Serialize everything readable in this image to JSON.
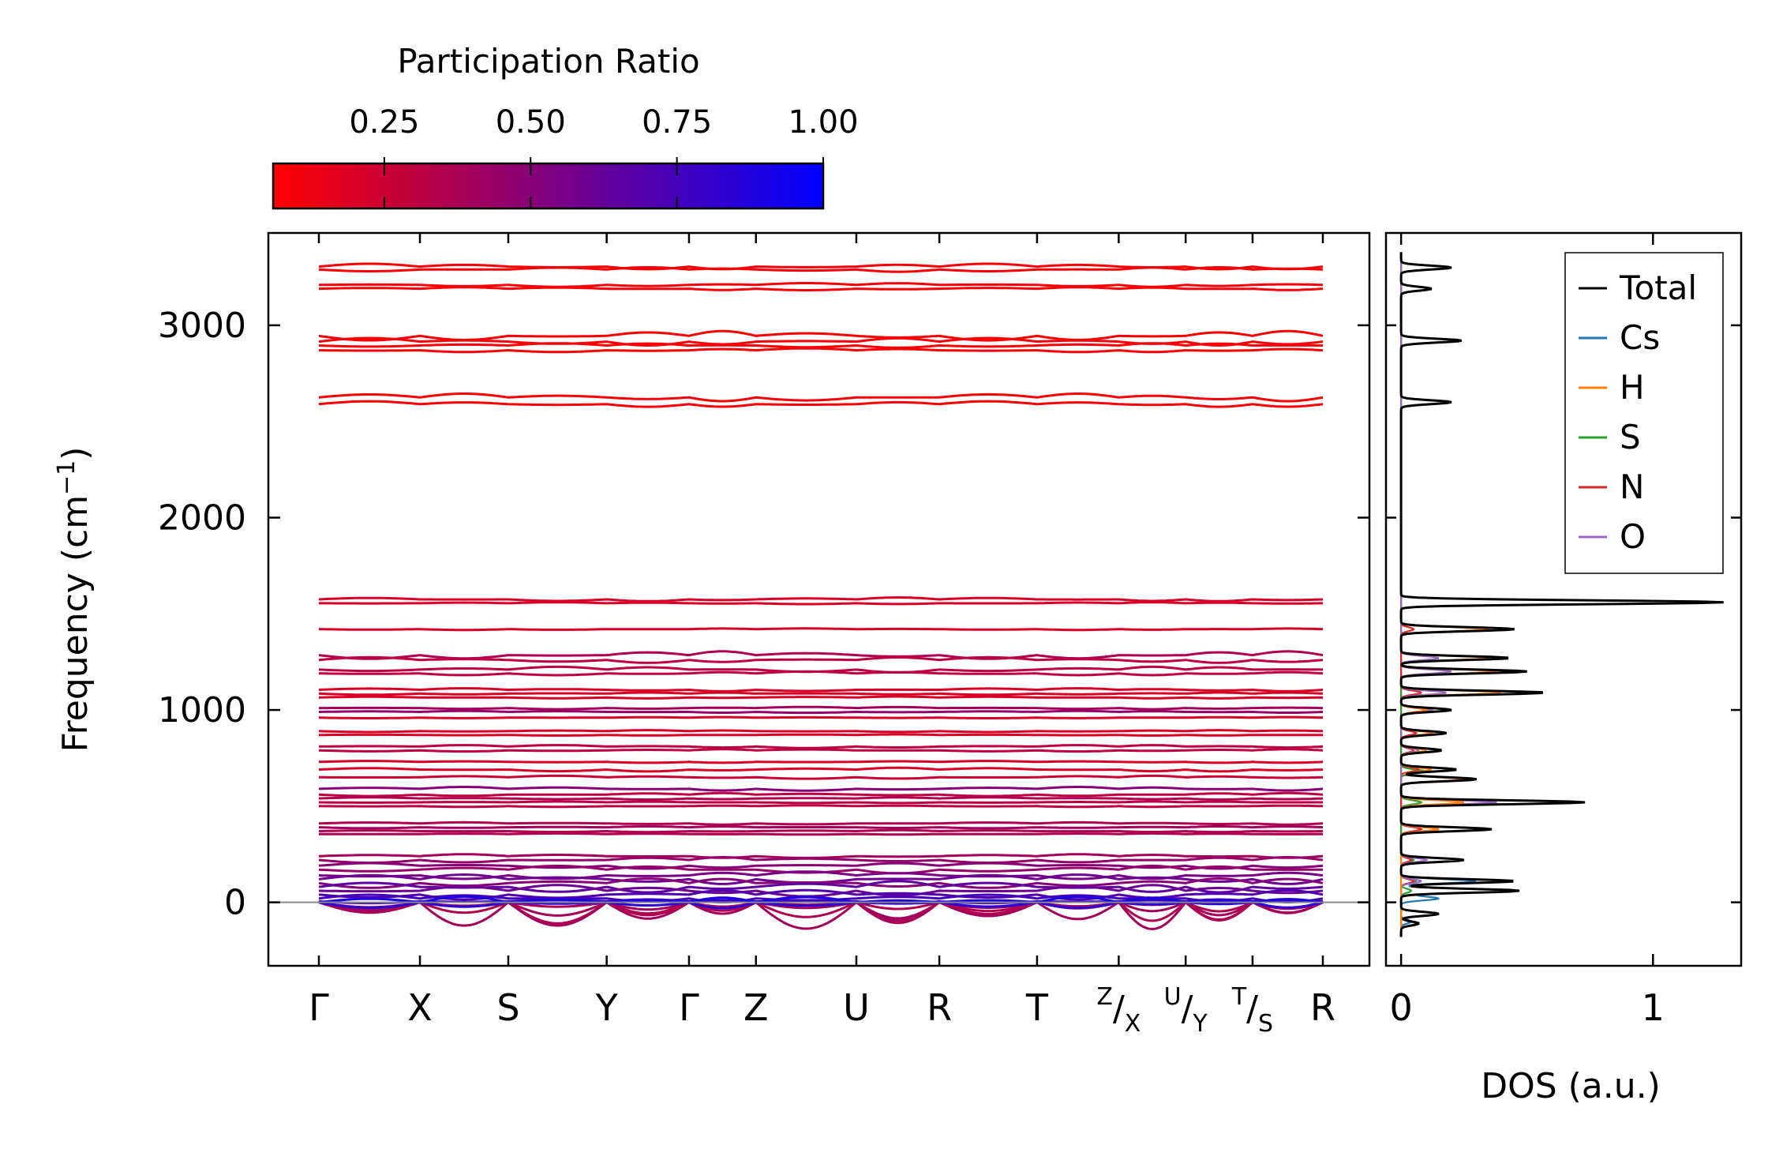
{
  "chart_data": [
    {
      "type": "line",
      "subtype": "phonon-band-structure",
      "ylabel_main": "Frequency (cm",
      "ylabel_sup": "−1",
      "ylabel_close": ")",
      "ylim": [
        -330,
        3480
      ],
      "yticks": [
        0,
        1000,
        2000,
        3000
      ],
      "ytick_labels": [
        "0",
        "1000",
        "2000",
        "3000"
      ],
      "kpoint_positions": [
        0,
        0.151,
        0.283,
        0.43,
        0.553,
        0.653,
        0.803,
        0.927,
        1.073,
        1.195,
        1.295,
        1.395,
        1.5
      ],
      "kpoint_labels": [
        "Γ",
        "X",
        "S",
        "Y",
        "Γ",
        "Z",
        "U",
        "R",
        "T",
        "ZX",
        "UY",
        "TS",
        "R"
      ],
      "kpoint_labels_top": [
        "",
        "",
        "",
        "",
        "",
        "",
        "",
        "",
        "",
        "Z",
        "U",
        "T",
        ""
      ],
      "kpoint_labels_bottom": [
        "",
        "",
        "",
        "",
        "",
        "",
        "",
        "",
        "",
        "X",
        "Y",
        "S",
        ""
      ],
      "colorbar": {
        "label": "Participation Ratio",
        "range": [
          0.06,
          1.0
        ],
        "ticks": [
          0.25,
          0.5,
          0.75,
          1.0
        ],
        "tick_labels": [
          "0.25",
          "0.50",
          "0.75",
          "1.00"
        ],
        "color_low": "#ff0000",
        "color_high": "#0000ff"
      },
      "bands": [
        {
          "f": 3305,
          "amp": 15,
          "pr": 0.08
        },
        {
          "f": 3290,
          "amp": -12,
          "pr": 0.08
        },
        {
          "f": 3210,
          "amp": 10,
          "pr": 0.08
        },
        {
          "f": 3190,
          "amp": -8,
          "pr": 0.08
        },
        {
          "f": 2945,
          "amp": 25,
          "pr": 0.08
        },
        {
          "f": 2915,
          "amp": -20,
          "pr": 0.08
        },
        {
          "f": 2895,
          "amp": 12,
          "pr": 0.08
        },
        {
          "f": 2870,
          "amp": -10,
          "pr": 0.08
        },
        {
          "f": 2625,
          "amp": 20,
          "pr": 0.08
        },
        {
          "f": 2590,
          "amp": 15,
          "pr": 0.08
        },
        {
          "f": 1575,
          "amp": 10,
          "pr": 0.2
        },
        {
          "f": 1555,
          "amp": -5,
          "pr": 0.2
        },
        {
          "f": 1420,
          "amp": 4,
          "pr": 0.2
        },
        {
          "f": 1285,
          "amp": 20,
          "pr": 0.35
        },
        {
          "f": 1260,
          "amp": -15,
          "pr": 0.3
        },
        {
          "f": 1210,
          "amp": 15,
          "pr": 0.3
        },
        {
          "f": 1190,
          "amp": -10,
          "pr": 0.3
        },
        {
          "f": 1105,
          "amp": 8,
          "pr": 0.2
        },
        {
          "f": 1085,
          "amp": -6,
          "pr": 0.2
        },
        {
          "f": 1065,
          "amp": 5,
          "pr": 0.2
        },
        {
          "f": 1010,
          "amp": 6,
          "pr": 0.4
        },
        {
          "f": 990,
          "amp": -5,
          "pr": 0.45
        },
        {
          "f": 960,
          "amp": 3,
          "pr": 0.2
        },
        {
          "f": 890,
          "amp": 5,
          "pr": 0.2
        },
        {
          "f": 870,
          "amp": -3,
          "pr": 0.2
        },
        {
          "f": 810,
          "amp": 8,
          "pr": 0.3
        },
        {
          "f": 790,
          "amp": -6,
          "pr": 0.3
        },
        {
          "f": 730,
          "amp": 5,
          "pr": 0.2
        },
        {
          "f": 690,
          "amp": 10,
          "pr": 0.2
        },
        {
          "f": 650,
          "amp": -8,
          "pr": 0.25
        },
        {
          "f": 590,
          "amp": -10,
          "pr": 0.5
        },
        {
          "f": 560,
          "amp": 8,
          "pr": 0.3
        },
        {
          "f": 540,
          "amp": -6,
          "pr": 0.35
        },
        {
          "f": 520,
          "amp": 4,
          "pr": 0.3
        },
        {
          "f": 500,
          "amp": -4,
          "pr": 0.3
        },
        {
          "f": 410,
          "amp": 6,
          "pr": 0.35
        },
        {
          "f": 390,
          "amp": -5,
          "pr": 0.4
        },
        {
          "f": 370,
          "amp": 5,
          "pr": 0.35
        },
        {
          "f": 355,
          "amp": -3,
          "pr": 0.35
        },
        {
          "f": 240,
          "amp": -10,
          "pr": 0.4
        },
        {
          "f": 220,
          "amp": 15,
          "pr": 0.45
        },
        {
          "f": 190,
          "amp": -15,
          "pr": 0.5
        },
        {
          "f": 170,
          "amp": 20,
          "pr": 0.45
        },
        {
          "f": 140,
          "amp": -20,
          "pr": 0.55
        },
        {
          "f": 120,
          "amp": 25,
          "pr": 0.6
        },
        {
          "f": 100,
          "amp": -25,
          "pr": 0.5
        },
        {
          "f": 80,
          "amp": 30,
          "pr": 0.65
        },
        {
          "f": 60,
          "amp": -30,
          "pr": 0.6
        },
        {
          "f": 40,
          "amp": 25,
          "pr": 0.7
        },
        {
          "f": 20,
          "amp": -20,
          "pr": 0.75
        },
        {
          "f": 5,
          "amp": 10,
          "pr": 0.8
        },
        {
          "f": 0,
          "amp": -60,
          "pr": 0.35
        },
        {
          "f": 0,
          "amp": -90,
          "pr": 0.4
        },
        {
          "f": 0,
          "amp": -110,
          "pr": 0.35
        },
        {
          "f": 0,
          "amp": -140,
          "pr": 0.4
        },
        {
          "f": 0,
          "amp": 30,
          "pr": 0.9
        },
        {
          "f": 0,
          "amp": -30,
          "pr": 0.85
        }
      ]
    },
    {
      "type": "line",
      "subtype": "density-of-states",
      "xlabel": "DOS (a.u.)",
      "xlim": [
        -0.06,
        1.35
      ],
      "xticks": [
        0,
        1
      ],
      "xtick_labels": [
        "0",
        "1"
      ],
      "legend": [
        {
          "name": "Total",
          "color": "#000000"
        },
        {
          "name": "Cs",
          "color": "#1f77b4"
        },
        {
          "name": "H",
          "color": "#ff7f0e"
        },
        {
          "name": "S",
          "color": "#2ca02c"
        },
        {
          "name": "N",
          "color": "#d62728"
        },
        {
          "name": "O",
          "color": "#9467bd"
        }
      ],
      "series": [
        {
          "name": "Total",
          "peaks": [
            [
              3300,
              0.2
            ],
            [
              3190,
              0.12
            ],
            [
              2920,
              0.24
            ],
            [
              2600,
              0.2
            ],
            [
              1560,
              1.28
            ],
            [
              1420,
              0.45
            ],
            [
              1270,
              0.43
            ],
            [
              1200,
              0.5
            ],
            [
              1090,
              0.57
            ],
            [
              1000,
              0.2
            ],
            [
              880,
              0.18
            ],
            [
              790,
              0.16
            ],
            [
              690,
              0.22
            ],
            [
              640,
              0.3
            ],
            [
              520,
              0.73
            ],
            [
              380,
              0.36
            ],
            [
              220,
              0.25
            ],
            [
              110,
              0.45
            ],
            [
              60,
              0.47
            ],
            [
              -60,
              0.15
            ],
            [
              -110,
              0.07
            ]
          ]
        },
        {
          "name": "Cs",
          "peaks": [
            [
              60,
              0.45
            ],
            [
              110,
              0.3
            ],
            [
              20,
              0.15
            ],
            [
              -100,
              0.04
            ]
          ]
        },
        {
          "name": "H",
          "peaks": [
            [
              3300,
              0.19
            ],
            [
              3190,
              0.11
            ],
            [
              2920,
              0.22
            ],
            [
              2600,
              0.18
            ],
            [
              1560,
              1.26
            ],
            [
              1420,
              0.35
            ],
            [
              1270,
              0.35
            ],
            [
              1200,
              0.38
            ],
            [
              1090,
              0.4
            ],
            [
              1000,
              0.1
            ],
            [
              880,
              0.12
            ],
            [
              790,
              0.1
            ],
            [
              690,
              0.12
            ],
            [
              640,
              0.25
            ],
            [
              520,
              0.25
            ],
            [
              380,
              0.15
            ]
          ]
        },
        {
          "name": "S",
          "peaks": [
            [
              680,
              0.1
            ],
            [
              520,
              0.08
            ],
            [
              220,
              0.05
            ],
            [
              110,
              0.06
            ],
            [
              60,
              0.04
            ]
          ]
        },
        {
          "name": "N",
          "peaks": [
            [
              1420,
              0.05
            ],
            [
              1090,
              0.08
            ],
            [
              1000,
              0.1
            ],
            [
              880,
              0.06
            ],
            [
              790,
              0.05
            ],
            [
              690,
              0.07
            ],
            [
              380,
              0.08
            ],
            [
              220,
              0.04
            ],
            [
              110,
              0.05
            ]
          ]
        },
        {
          "name": "O",
          "peaks": [
            [
              1270,
              0.15
            ],
            [
              1200,
              0.2
            ],
            [
              1090,
              0.18
            ],
            [
              1000,
              0.12
            ],
            [
              790,
              0.07
            ],
            [
              520,
              0.38
            ],
            [
              380,
              0.15
            ],
            [
              220,
              0.1
            ],
            [
              110,
              0.08
            ]
          ]
        }
      ]
    }
  ]
}
